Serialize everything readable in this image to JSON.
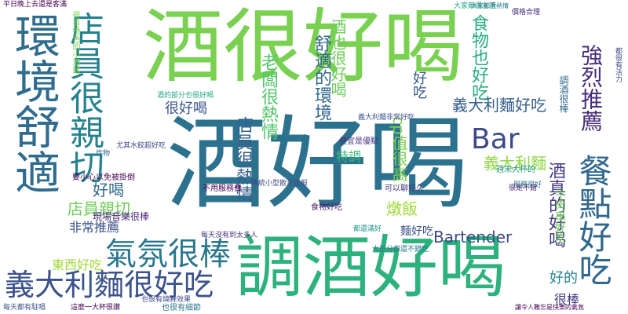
{
  "word_cloud": {
    "words": [
      {
        "text": "酒好喝",
        "color": "#2c728e"
      },
      {
        "text": "酒很好喝",
        "color": "#7ad151"
      },
      {
        "text": "調酒好喝",
        "color": "#2db27d"
      },
      {
        "text": "環境舒適",
        "color": "#2f6c8e"
      },
      {
        "text": "店員很親切",
        "color": "#26828e"
      },
      {
        "text": "義大利麵很好吃",
        "color": "#3b528b"
      },
      {
        "text": "氣氛很棒",
        "color": "#2a788e"
      },
      {
        "text": "餐點好吃",
        "color": "#31688e"
      },
      {
        "text": "Bar",
        "color": "#3e4a89"
      },
      {
        "text": "強烈推薦",
        "color": "#472d7b"
      },
      {
        "text": "食物也好吃",
        "color": "#25ab82"
      },
      {
        "text": "舒適的環境",
        "color": "#31688e"
      },
      {
        "text": "店員很熱情",
        "color": "#355f8d"
      },
      {
        "text": "老闆很熱情",
        "color": "#52c569"
      },
      {
        "text": "酒也很好喝",
        "color": "#6ece58"
      },
      {
        "text": "cp值很高",
        "color": "#7fd34e"
      },
      {
        "text": "義大利麵好吃",
        "color": "#355f8d"
      },
      {
        "text": "義大利麵",
        "color": "#8fd744"
      },
      {
        "text": "店員親切",
        "color": "#6ece58"
      },
      {
        "text": "酒真的好喝",
        "color": "#453781"
      },
      {
        "text": "Bartender",
        "color": "#3e4a89"
      },
      {
        "text": "非常推薦",
        "color": "#3b528b"
      },
      {
        "text": "東西好吃",
        "color": "#a0da39"
      },
      {
        "text": "好喝",
        "color": "#31688e"
      },
      {
        "text": "好吃",
        "color": "#38598c"
      },
      {
        "text": "很好喝",
        "color": "#39568c"
      },
      {
        "text": "燉飯",
        "color": "#9fda3a"
      },
      {
        "text": "特調",
        "color": "#35b779"
      },
      {
        "text": "麵好吃",
        "color": "#3b528b"
      },
      {
        "text": "好的",
        "color": "#25848e"
      },
      {
        "text": "很棒",
        "color": "#443a83"
      },
      {
        "text": "大家都很友善",
        "color": "#22a884"
      },
      {
        "text": "價格合理",
        "color": "#472d7b"
      },
      {
        "text": "服務很好",
        "color": "#2a788e"
      },
      {
        "text": "不用服務費",
        "color": "#440154"
      },
      {
        "text": "可以聊好久",
        "color": "#453781"
      },
      {
        "text": "食物好吃",
        "color": "#481a6c"
      },
      {
        "text": "現場音樂很棒",
        "color": "#482878"
      },
      {
        "text": "要小心以免被掛倒",
        "color": "#440154"
      },
      {
        "text": "尤其水餃超好吃",
        "color": "#3e4989"
      },
      {
        "text": "炸物",
        "color": "#31688e"
      },
      {
        "text": "便宜是優點",
        "color": "#46337e"
      },
      {
        "text": "週末大杯的",
        "color": "#1f958b"
      },
      {
        "text": "很是不錯",
        "color": "#481a6c"
      },
      {
        "text": "也很有細節",
        "color": "#2a788e"
      },
      {
        "text": "牛肉串好吃",
        "color": "#6ece58"
      },
      {
        "text": "每天都有駐唱",
        "color": "#3b528b"
      },
      {
        "text": "這麼一大杯很讚",
        "color": "#440154"
      },
      {
        "text": "也很有燒舞效果",
        "color": "#3e4a89"
      },
      {
        "text": "讓令人難忘是快樂的氣氛",
        "color": "#440154"
      },
      {
        "text": "平日晚上去還是客滿",
        "color": "#440154"
      },
      {
        "text": "大家都很熱情",
        "color": "#2a788e"
      },
      {
        "text": "酒的部分也很好喝",
        "color": "#22a884"
      },
      {
        "text": "義大利麵非常好吃",
        "color": "#3b528b"
      },
      {
        "text": "傳統小型散步雲般",
        "color": "#3e4989"
      },
      {
        "text": "每天沒有到太多人",
        "color": "#46337e"
      },
      {
        "text": "都還滿好",
        "color": "#1f958b"
      },
      {
        "text": "大部分都還不錯吃",
        "color": "#2a788e"
      },
      {
        "text": "很有特色的小酒館",
        "color": "#7ad151"
      },
      {
        "text": "調酒很棒",
        "color": "#31688e"
      },
      {
        "text": "都很有活力",
        "color": "#3e4989"
      }
    ]
  }
}
